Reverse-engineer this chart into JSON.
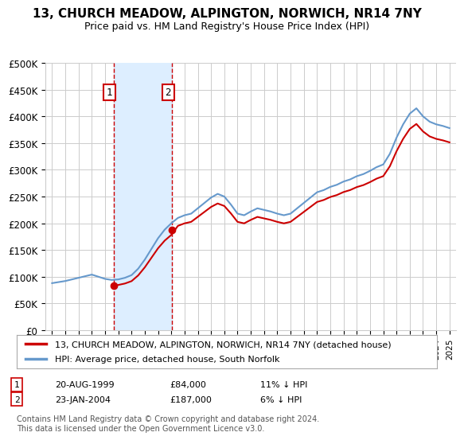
{
  "title": "13, CHURCH MEADOW, ALPINGTON, NORWICH, NR14 7NY",
  "subtitle": "Price paid vs. HM Land Registry's House Price Index (HPI)",
  "legend_line1": "13, CHURCH MEADOW, ALPINGTON, NORWICH, NR14 7NY (detached house)",
  "legend_line2": "HPI: Average price, detached house, South Norfolk",
  "footnote": "Contains HM Land Registry data © Crown copyright and database right 2024.\nThis data is licensed under the Open Government Licence v3.0.",
  "transaction1_label": "1",
  "transaction1_date": "20-AUG-1999",
  "transaction1_price": "£84,000",
  "transaction1_hpi": "11% ↓ HPI",
  "transaction1_year": 1999.64,
  "transaction1_value": 84000,
  "transaction2_label": "2",
  "transaction2_date": "23-JAN-2004",
  "transaction2_price": "£187,000",
  "transaction2_hpi": "6% ↓ HPI",
  "transaction2_year": 2004.06,
  "transaction2_value": 187000,
  "hpi_color": "#6699cc",
  "price_paid_color": "#cc0000",
  "shaded_region_color": "#ddeeff",
  "vline_color": "#cc0000",
  "marker_color": "#cc0000",
  "ylim": [
    0,
    500000
  ],
  "yticks": [
    0,
    50000,
    100000,
    150000,
    200000,
    250000,
    300000,
    350000,
    400000,
    450000,
    500000
  ],
  "background_color": "#ffffff",
  "grid_color": "#cccccc"
}
